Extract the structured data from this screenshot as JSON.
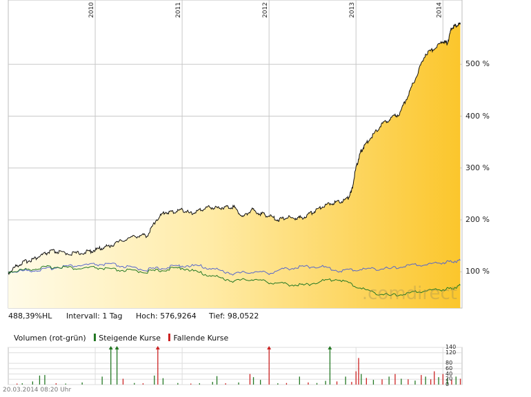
{
  "chart_data": [
    {
      "type": "line",
      "title": "",
      "x_start": 2009.0,
      "x_end": 2014.22,
      "year_ticks": [
        "2010",
        "2011",
        "2012",
        "2013",
        "2014"
      ],
      "ylim": [
        30,
        600
      ],
      "y_tick_labels": [
        "100 %",
        "200 %",
        "300 %",
        "400 %",
        "500 %"
      ],
      "y_tick_values": [
        100,
        200,
        300,
        400,
        500
      ],
      "grid": true,
      "watermark": ".comdirect",
      "series": [
        {
          "color": "#111111",
          "fill": "gold-gradient",
          "x": [
            2009.0,
            2009.1,
            2009.2,
            2009.3,
            2009.4,
            2009.5,
            2009.6,
            2009.75,
            2009.9,
            2010.0,
            2010.1,
            2010.2,
            2010.35,
            2010.5,
            2010.6,
            2010.7,
            2010.8,
            2010.9,
            2011.0,
            2011.1,
            2011.2,
            2011.3,
            2011.4,
            2011.5,
            2011.6,
            2011.7,
            2011.8,
            2011.9,
            2012.0,
            2012.1,
            2012.2,
            2012.3,
            2012.4,
            2012.5,
            2012.6,
            2012.7,
            2012.8,
            2012.9,
            2012.95,
            2013.0,
            2013.05,
            2013.1,
            2013.2,
            2013.3,
            2013.4,
            2013.5,
            2013.6,
            2013.7,
            2013.8,
            2013.9,
            2014.0,
            2014.05,
            2014.1,
            2014.15,
            2014.2
          ],
          "values": [
            98,
            112,
            120,
            125,
            133,
            140,
            137,
            135,
            138,
            142,
            147,
            152,
            163,
            170,
            170,
            200,
            215,
            215,
            220,
            212,
            218,
            225,
            223,
            225,
            225,
            205,
            220,
            212,
            208,
            200,
            205,
            203,
            205,
            215,
            225,
            232,
            235,
            240,
            255,
            300,
            330,
            343,
            365,
            385,
            395,
            405,
            440,
            480,
            520,
            530,
            545,
            540,
            570,
            575,
            577
          ]
        },
        {
          "color": "#5566cc",
          "x": [
            2009.0,
            2009.2,
            2009.4,
            2009.6,
            2009.8,
            2010.0,
            2010.2,
            2010.4,
            2010.6,
            2010.8,
            2011.0,
            2011.2,
            2011.4,
            2011.6,
            2011.8,
            2012.0,
            2012.2,
            2012.4,
            2012.6,
            2012.8,
            2013.0,
            2013.2,
            2013.4,
            2013.6,
            2013.8,
            2014.0,
            2014.1,
            2014.2
          ],
          "values": [
            100,
            102,
            104,
            110,
            112,
            114,
            114,
            108,
            104,
            108,
            112,
            111,
            104,
            96,
            100,
            98,
            106,
            110,
            110,
            102,
            104,
            106,
            106,
            112,
            114,
            118,
            120,
            122
          ]
        },
        {
          "color": "#227722",
          "x": [
            2009.0,
            2009.2,
            2009.4,
            2009.6,
            2009.8,
            2010.0,
            2010.2,
            2010.4,
            2010.6,
            2010.8,
            2011.0,
            2011.2,
            2011.4,
            2011.6,
            2011.8,
            2012.0,
            2012.2,
            2012.4,
            2012.6,
            2012.8,
            2013.0,
            2013.2,
            2013.4,
            2013.6,
            2013.8,
            2014.0,
            2014.1,
            2014.2
          ],
          "values": [
            100,
            104,
            108,
            110,
            106,
            108,
            104,
            102,
            100,
            104,
            108,
            98,
            90,
            82,
            86,
            80,
            76,
            74,
            82,
            86,
            72,
            60,
            54,
            58,
            64,
            66,
            68,
            74
          ]
        }
      ]
    },
    {
      "type": "bar",
      "title": "Volumen (rot-grün)",
      "legend": [
        "Steigende Kurse",
        "Fallende Kurse"
      ],
      "legend_colors": [
        "#227722",
        "#cc2222"
      ],
      "ylim": [
        0,
        140
      ],
      "y_ticks": [
        "140",
        "120",
        "80",
        "60",
        "40",
        "20",
        "0"
      ],
      "y_tick_values": [
        140,
        120,
        80,
        60,
        40,
        20,
        0
      ],
      "x_start": 2009.0,
      "x_end": 2014.22,
      "bars": [
        {
          "x": 2009.1,
          "value": 4,
          "up": false
        },
        {
          "x": 2009.16,
          "value": 5,
          "up": true
        },
        {
          "x": 2009.28,
          "value": 12,
          "up": true
        },
        {
          "x": 2009.36,
          "value": 34,
          "up": true
        },
        {
          "x": 2009.42,
          "value": 36,
          "up": true
        },
        {
          "x": 2009.55,
          "value": 5,
          "up": false
        },
        {
          "x": 2009.66,
          "value": 4,
          "up": true
        },
        {
          "x": 2009.85,
          "value": 8,
          "up": true
        },
        {
          "x": 2010.08,
          "value": 30,
          "up": true
        },
        {
          "x": 2010.18,
          "value": 140,
          "up": true
        },
        {
          "x": 2010.25,
          "value": 140,
          "up": true
        },
        {
          "x": 2010.32,
          "value": 22,
          "up": false
        },
        {
          "x": 2010.45,
          "value": 6,
          "up": true
        },
        {
          "x": 2010.55,
          "value": 5,
          "up": false
        },
        {
          "x": 2010.68,
          "value": 34,
          "up": true
        },
        {
          "x": 2010.72,
          "value": 140,
          "up": false
        },
        {
          "x": 2010.78,
          "value": 24,
          "up": true
        },
        {
          "x": 2010.95,
          "value": 6,
          "up": true
        },
        {
          "x": 2011.1,
          "value": 4,
          "up": false
        },
        {
          "x": 2011.2,
          "value": 5,
          "up": true
        },
        {
          "x": 2011.35,
          "value": 10,
          "up": true
        },
        {
          "x": 2011.4,
          "value": 32,
          "up": true
        },
        {
          "x": 2011.5,
          "value": 5,
          "up": false
        },
        {
          "x": 2011.65,
          "value": 8,
          "up": true
        },
        {
          "x": 2011.78,
          "value": 40,
          "up": false
        },
        {
          "x": 2011.82,
          "value": 28,
          "up": true
        },
        {
          "x": 2011.9,
          "value": 18,
          "up": true
        },
        {
          "x": 2012.0,
          "value": 140,
          "up": false
        },
        {
          "x": 2012.1,
          "value": 5,
          "up": true
        },
        {
          "x": 2012.2,
          "value": 6,
          "up": false
        },
        {
          "x": 2012.35,
          "value": 30,
          "up": true
        },
        {
          "x": 2012.45,
          "value": 8,
          "up": false
        },
        {
          "x": 2012.55,
          "value": 6,
          "up": true
        },
        {
          "x": 2012.65,
          "value": 14,
          "up": true
        },
        {
          "x": 2012.7,
          "value": 140,
          "up": true
        },
        {
          "x": 2012.78,
          "value": 12,
          "up": false
        },
        {
          "x": 2012.88,
          "value": 30,
          "up": true
        },
        {
          "x": 2012.95,
          "value": 10,
          "up": false
        },
        {
          "x": 2013.0,
          "value": 50,
          "up": false
        },
        {
          "x": 2013.03,
          "value": 100,
          "up": false
        },
        {
          "x": 2013.06,
          "value": 40,
          "up": true
        },
        {
          "x": 2013.12,
          "value": 25,
          "up": false
        },
        {
          "x": 2013.2,
          "value": 18,
          "up": true
        },
        {
          "x": 2013.3,
          "value": 20,
          "up": false
        },
        {
          "x": 2013.38,
          "value": 30,
          "up": true
        },
        {
          "x": 2013.45,
          "value": 40,
          "up": false
        },
        {
          "x": 2013.52,
          "value": 22,
          "up": true
        },
        {
          "x": 2013.6,
          "value": 20,
          "up": false
        },
        {
          "x": 2013.68,
          "value": 15,
          "up": true
        },
        {
          "x": 2013.75,
          "value": 36,
          "up": false
        },
        {
          "x": 2013.8,
          "value": 30,
          "up": true
        },
        {
          "x": 2013.86,
          "value": 20,
          "up": false
        },
        {
          "x": 2013.9,
          "value": 50,
          "up": false
        },
        {
          "x": 2013.95,
          "value": 28,
          "up": true
        },
        {
          "x": 2014.0,
          "value": 40,
          "up": false
        },
        {
          "x": 2014.05,
          "value": 25,
          "up": true
        },
        {
          "x": 2014.1,
          "value": 18,
          "up": false
        },
        {
          "x": 2014.15,
          "value": 30,
          "up": true
        },
        {
          "x": 2014.2,
          "value": 22,
          "up": false
        }
      ]
    }
  ],
  "info": {
    "change": "488,39%HL",
    "interval": "Intervall: 1 Tag",
    "high": "Hoch: 576,9264",
    "low": "Tief: 98,0522"
  },
  "volume_legend": {
    "title": "Volumen (rot-grün)",
    "up": "Steigende Kurse",
    "down": "Fallende Kurse"
  },
  "footer": {
    "timestamp": "20.03.2014 08:20 Uhr"
  }
}
